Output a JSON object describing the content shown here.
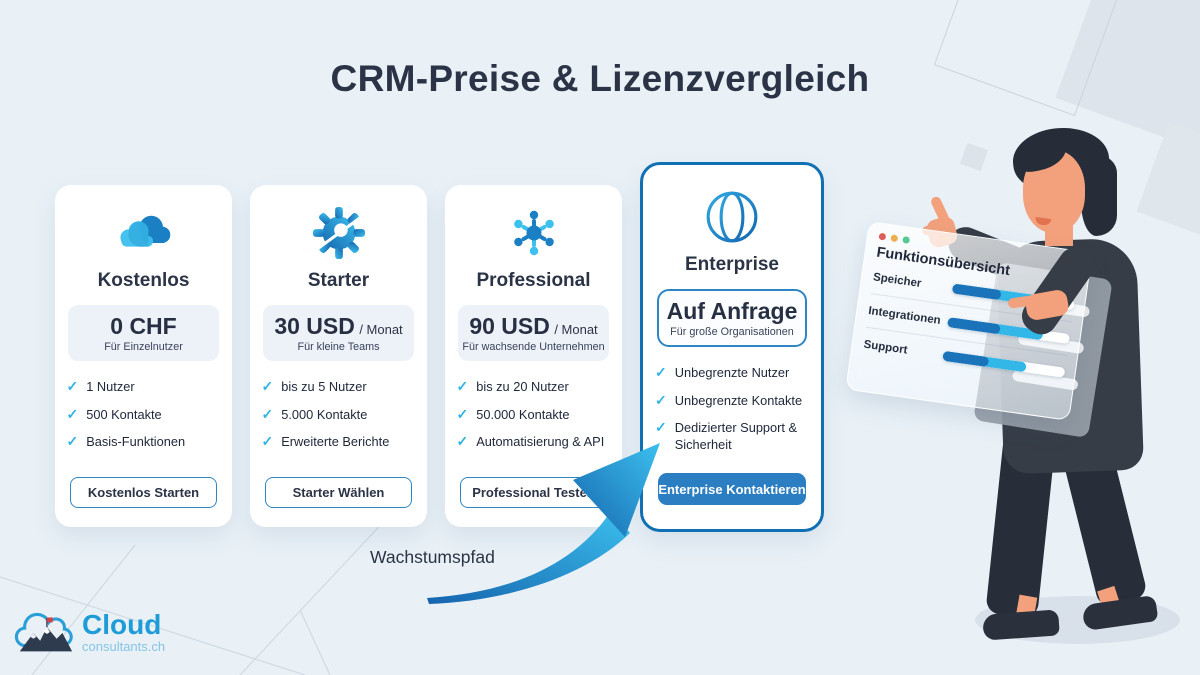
{
  "title": "CRM-Preise & Lizenzvergleich",
  "growth_label": "Wachstumspfad",
  "plans": [
    {
      "name": "Kostenlos",
      "icon": "cloud-icon",
      "price": "0 CHF",
      "period": "",
      "audience": "Für Einzelnutzer",
      "features": [
        "1 Nutzer",
        "500 Kontakte",
        "Basis-Funktionen"
      ],
      "cta": "Kostenlos Starten",
      "highlighted": false
    },
    {
      "name": "Starter",
      "icon": "gear-icon",
      "price": "30 USD",
      "period": "/ Monat",
      "audience": "Für kleine Teams",
      "features": [
        "bis zu 5 Nutzer",
        "5.000 Kontakte",
        "Erweiterte Berichte"
      ],
      "cta": "Starter Wählen",
      "highlighted": false
    },
    {
      "name": "Professional",
      "icon": "network-icon",
      "price": "90 USD",
      "period": "/ Monat",
      "audience": "Für wachsende Unternehmen",
      "features": [
        "bis zu 20 Nutzer",
        "50.000 Kontakte",
        "Automatisierung & API"
      ],
      "cta": "Professional Testen",
      "highlighted": false
    },
    {
      "name": "Enterprise",
      "icon": "globe-icon",
      "price": "Auf Anfrage",
      "period": "",
      "audience": "Für große Organisationen",
      "features": [
        "Unbegrenzte Nutzer",
        "Unbegrenzte Kontakte",
        "Dedizierter Support & Sicherheit"
      ],
      "cta": "Enterprise Kontaktieren",
      "highlighted": true
    }
  ],
  "panel": {
    "title": "Funktionsübersicht",
    "rows": [
      {
        "label": "Speicher",
        "value": 72
      },
      {
        "label": "Integrationen",
        "value": 78
      },
      {
        "label": "Support",
        "value": 68
      }
    ]
  },
  "logo": {
    "brand": "Cloud",
    "domain": "consultants.ch"
  },
  "colors": {
    "background": "#e9f1f7",
    "dark_navy": "#2b3347",
    "accent_cyan": "#2fb4e3",
    "primary_blue": "#1b7fc4",
    "enterprise_border": "#1070b4",
    "enterprise_button": "#2b7ec1",
    "price_box": "#edf2f8",
    "arrow_dark": "#1565ae",
    "arrow_light": "#3cc0ee"
  }
}
